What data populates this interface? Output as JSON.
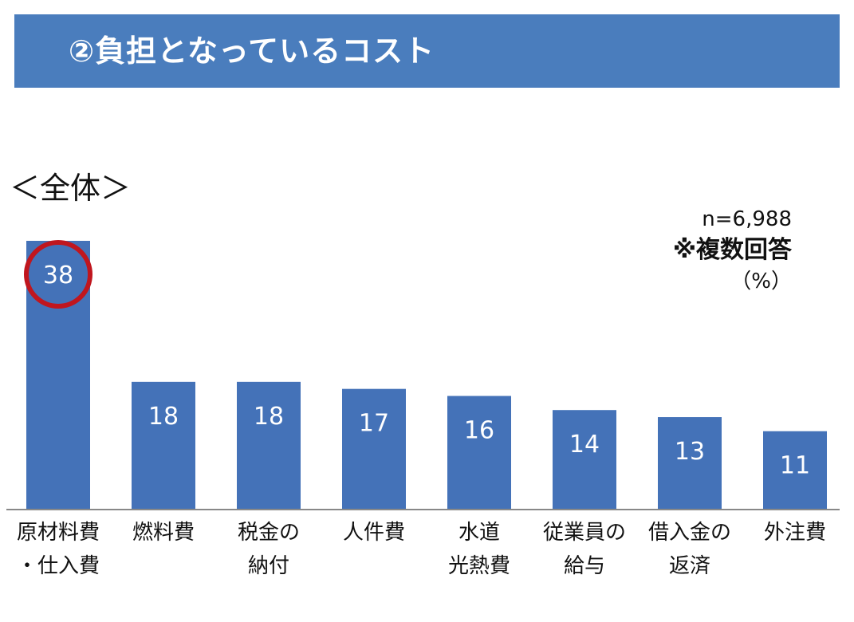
{
  "header": {
    "title": "②負担となっているコスト"
  },
  "subtitle": "＜全体＞",
  "meta": {
    "sample": "n=6,988",
    "note": "※複数回答",
    "unit": "（%）"
  },
  "colors": {
    "bar": "#4472b8",
    "highlight": "#c0161e",
    "axis": "#888888"
  },
  "chart_data": {
    "type": "bar",
    "categories": [
      [
        "原材料費",
        "・仕入費"
      ],
      [
        "燃料費"
      ],
      [
        "税金の",
        "納付"
      ],
      [
        "人件費"
      ],
      [
        "水道",
        "光熱費"
      ],
      [
        "従業員の",
        "給与"
      ],
      [
        "借入金の",
        "返済"
      ],
      [
        "外注費"
      ]
    ],
    "values": [
      38,
      18,
      18,
      17,
      16,
      14,
      13,
      11
    ],
    "highlight_index": 0,
    "ylim": [
      0,
      38
    ]
  }
}
